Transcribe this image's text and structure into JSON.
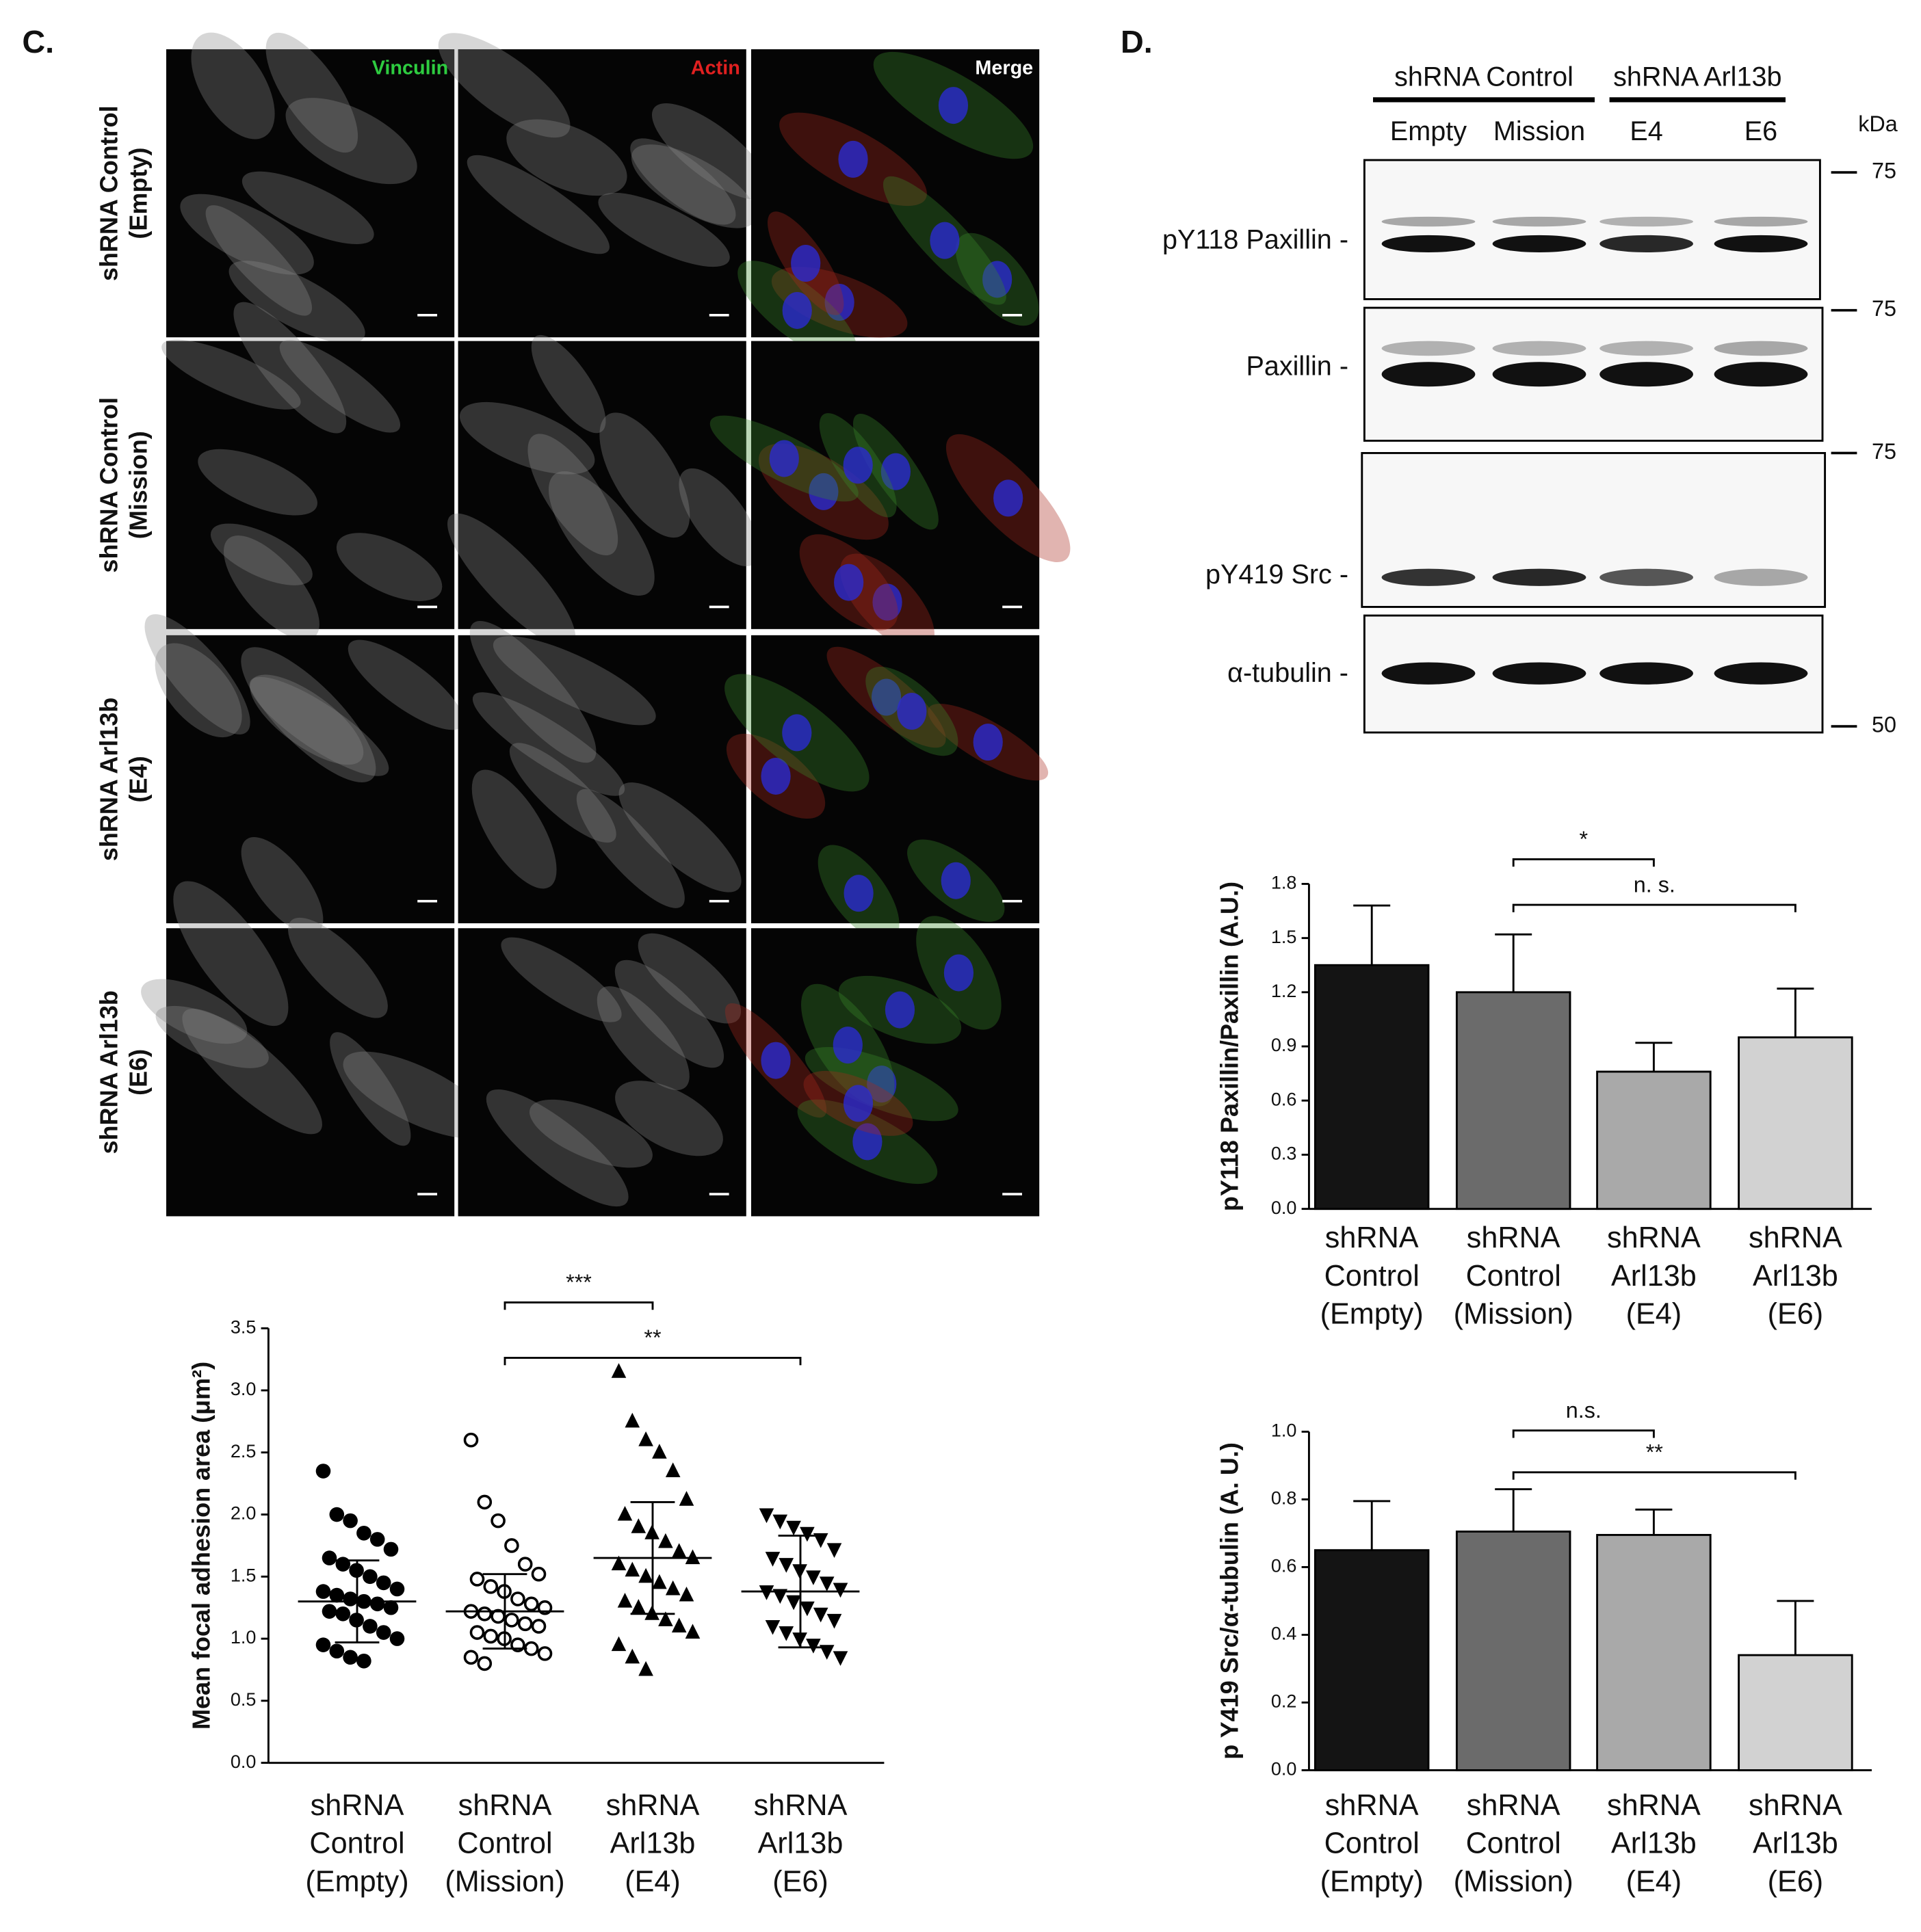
{
  "panel_c": {
    "label": "C.",
    "channels": [
      "Vinculin",
      "Actin",
      "Merge"
    ],
    "row_labels": [
      [
        "shRNA Control",
        "(Empty)"
      ],
      [
        "shRNA Control",
        "(Mission)"
      ],
      [
        "shRNA Arl13b",
        "(E4)"
      ],
      [
        "shRNA Arl13b",
        "(E6)"
      ]
    ]
  },
  "panel_d": {
    "label": "D.",
    "groups": [
      "shRNA Control",
      "shRNA Arl13b"
    ],
    "lanes": [
      "Empty",
      "Mission",
      "E4",
      "E6"
    ],
    "kda_label": "kDa",
    "markers": [
      75,
      75,
      75,
      50
    ],
    "blot_rows": [
      "pY118 Paxillin -",
      "Paxillin -",
      "pY419 Src -",
      "α-tubulin -"
    ]
  },
  "chart_data": [
    {
      "type": "scatter",
      "y_label": "Mean focal adhesion area (μm²)",
      "categories": [
        [
          "shRNA",
          "Control",
          "(Empty)"
        ],
        [
          "shRNA",
          "Control",
          "(Mission)"
        ],
        [
          "shRNA",
          "Arl13b",
          "(E4)"
        ],
        [
          "shRNA",
          "Arl13b",
          "(E6)"
        ]
      ],
      "series": [
        {
          "marker": "circle",
          "color": "#000000",
          "mean": 1.3,
          "sd": 0.33,
          "values": [
            2.35,
            2.0,
            1.95,
            1.85,
            1.8,
            1.72,
            1.65,
            1.6,
            1.55,
            1.5,
            1.45,
            1.4,
            1.38,
            1.35,
            1.32,
            1.3,
            1.28,
            1.25,
            1.22,
            1.2,
            1.15,
            1.1,
            1.05,
            1.0,
            0.95,
            0.9,
            0.85,
            0.82
          ]
        },
        {
          "marker": "open-circle",
          "color": "#000000",
          "mean": 1.22,
          "sd": 0.3,
          "values": [
            2.6,
            2.1,
            1.95,
            1.75,
            1.6,
            1.52,
            1.48,
            1.42,
            1.38,
            1.32,
            1.28,
            1.25,
            1.22,
            1.2,
            1.18,
            1.15,
            1.12,
            1.1,
            1.05,
            1.02,
            1.0,
            0.95,
            0.92,
            0.88,
            0.85,
            0.8
          ]
        },
        {
          "marker": "triangle-up",
          "color": "#000000",
          "mean": 1.65,
          "sd": 0.45,
          "values": [
            3.15,
            2.75,
            2.6,
            2.5,
            2.35,
            2.12,
            2.0,
            1.9,
            1.85,
            1.78,
            1.7,
            1.65,
            1.6,
            1.55,
            1.5,
            1.45,
            1.4,
            1.35,
            1.3,
            1.25,
            1.2,
            1.15,
            1.1,
            1.05,
            0.95,
            0.85,
            0.75
          ]
        },
        {
          "marker": "triangle-down",
          "color": "#000000",
          "mean": 1.38,
          "sd": 0.45,
          "values": [
            2.0,
            1.95,
            1.9,
            1.85,
            1.8,
            1.72,
            1.65,
            1.6,
            1.55,
            1.5,
            1.45,
            1.4,
            1.38,
            1.35,
            1.3,
            1.25,
            1.2,
            1.15,
            1.1,
            1.05,
            1.0,
            0.95,
            0.9,
            0.85
          ]
        }
      ],
      "ylim": [
        0,
        3.5
      ],
      "yticks": [
        {
          "value": 0,
          "label": "0.0"
        },
        0.5,
        {
          "value": 1,
          "label": "1.0"
        },
        1.5,
        {
          "value": 2,
          "label": "2.0"
        },
        2.5,
        {
          "value": 3,
          "label": "3.0"
        },
        3.5
      ],
      "annotations": [
        {
          "text": "***",
          "from": 1,
          "to": 2
        },
        {
          "text": "**",
          "from": 1,
          "to": 3
        }
      ]
    },
    {
      "type": "bar",
      "y_label": "pY118 Paxillin/Paxillin (A.U.)",
      "categories": [
        [
          "shRNA",
          "Control",
          "(Empty)"
        ],
        [
          "shRNA",
          "Control",
          "(Mission)"
        ],
        [
          "shRNA",
          "Arl13b",
          "(E4)"
        ],
        [
          "shRNA",
          "Arl13b",
          "(E6)"
        ]
      ],
      "values": [
        1.35,
        1.2,
        0.76,
        0.95
      ],
      "errors": [
        0.33,
        0.32,
        0.16,
        0.27
      ],
      "colors": [
        "#141414",
        "#6b6b6b",
        "#a9a9a9",
        "#d2d2d2"
      ],
      "ylim": [
        0,
        1.8
      ],
      "yticks": [
        {
          "value": 0,
          "label": "0.0"
        },
        0.3,
        0.6,
        0.9,
        1.2,
        1.5,
        1.8
      ],
      "annotations": [
        {
          "text": "*",
          "from": 1,
          "to": 2
        },
        {
          "text": "n. s.",
          "from": 1,
          "to": 3
        }
      ]
    },
    {
      "type": "bar",
      "y_label": "p Y419 Src/α-tubulin (A. U.)",
      "categories": [
        [
          "shRNA",
          "Control",
          "(Empty)"
        ],
        [
          "shRNA",
          "Control",
          "(Mission)"
        ],
        [
          "shRNA",
          "Arl13b",
          "(E4)"
        ],
        [
          "shRNA",
          "Arl13b",
          "(E6)"
        ]
      ],
      "values": [
        0.65,
        0.705,
        0.695,
        0.34
      ],
      "errors": [
        0.145,
        0.125,
        0.075,
        0.16
      ],
      "colors": [
        "#141414",
        "#6b6b6b",
        "#a9a9a9",
        "#d2d2d2"
      ],
      "ylim": [
        0,
        1.0
      ],
      "yticks": [
        {
          "value": 0,
          "label": "0.0"
        },
        0.2,
        0.4,
        0.6,
        0.8,
        {
          "value": 1,
          "label": "1.0"
        }
      ],
      "annotations": [
        {
          "text": "n.s.",
          "from": 1,
          "to": 2
        },
        {
          "text": "**",
          "from": 1,
          "to": 3
        }
      ]
    }
  ]
}
